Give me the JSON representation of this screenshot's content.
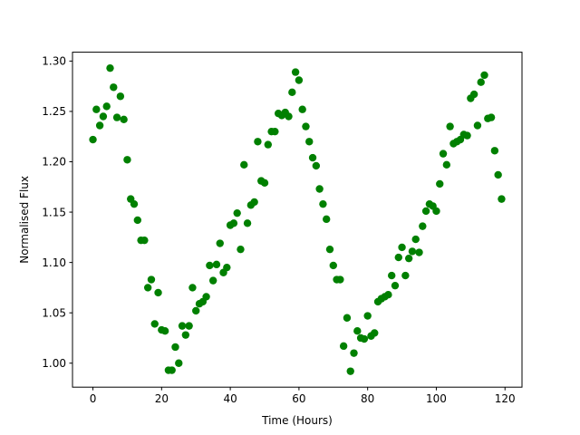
{
  "chart_data": {
    "type": "scatter",
    "title": "",
    "xlabel": "Time (Hours)",
    "ylabel": "Normalised Flux",
    "xlim": [
      -5.95,
      124.95
    ],
    "ylim": [
      0.9762,
      1.3088
    ],
    "xticks": [
      0,
      20,
      40,
      60,
      80,
      100,
      120
    ],
    "xtick_labels": [
      "0",
      "20",
      "40",
      "60",
      "80",
      "100",
      "120"
    ],
    "yticks": [
      1.0,
      1.05,
      1.1,
      1.15,
      1.2,
      1.25,
      1.3
    ],
    "ytick_labels": [
      "1.00",
      "1.05",
      "1.10",
      "1.15",
      "1.20",
      "1.25",
      "1.30"
    ],
    "grid": false,
    "marker_color": "#008000",
    "series": [
      {
        "name": "",
        "points": [
          [
            0,
            1.222
          ],
          [
            1,
            1.252
          ],
          [
            2,
            1.236
          ],
          [
            3,
            1.245
          ],
          [
            4,
            1.255
          ],
          [
            5,
            1.293
          ],
          [
            6,
            1.274
          ],
          [
            7,
            1.244
          ],
          [
            8,
            1.265
          ],
          [
            9,
            1.242
          ],
          [
            10,
            1.202
          ],
          [
            11,
            1.163
          ],
          [
            12,
            1.158
          ],
          [
            13,
            1.142
          ],
          [
            14,
            1.122
          ],
          [
            15,
            1.122
          ],
          [
            16,
            1.075
          ],
          [
            17,
            1.083
          ],
          [
            18,
            1.039
          ],
          [
            19,
            1.07
          ],
          [
            20,
            1.033
          ],
          [
            21,
            1.032
          ],
          [
            22,
            0.993
          ],
          [
            23,
            0.993
          ],
          [
            24,
            1.016
          ],
          [
            25,
            1.0
          ],
          [
            26,
            1.037
          ],
          [
            27,
            1.028
          ],
          [
            28,
            1.037
          ],
          [
            29,
            1.075
          ],
          [
            30,
            1.052
          ],
          [
            31,
            1.059
          ],
          [
            32,
            1.061
          ],
          [
            33,
            1.066
          ],
          [
            34,
            1.097
          ],
          [
            35,
            1.082
          ],
          [
            36,
            1.098
          ],
          [
            37,
            1.119
          ],
          [
            38,
            1.09
          ],
          [
            39,
            1.095
          ],
          [
            40,
            1.137
          ],
          [
            41,
            1.139
          ],
          [
            42,
            1.149
          ],
          [
            43,
            1.113
          ],
          [
            44,
            1.197
          ],
          [
            45,
            1.139
          ],
          [
            46,
            1.157
          ],
          [
            47,
            1.16
          ],
          [
            48,
            1.22
          ],
          [
            49,
            1.181
          ],
          [
            50,
            1.179
          ],
          [
            51,
            1.217
          ],
          [
            52,
            1.23
          ],
          [
            53,
            1.23
          ],
          [
            54,
            1.248
          ],
          [
            55,
            1.246
          ],
          [
            56,
            1.249
          ],
          [
            57,
            1.245
          ],
          [
            58,
            1.269
          ],
          [
            59,
            1.289
          ],
          [
            60,
            1.281
          ],
          [
            61,
            1.252
          ],
          [
            62,
            1.235
          ],
          [
            63,
            1.22
          ],
          [
            64,
            1.204
          ],
          [
            65,
            1.196
          ],
          [
            66,
            1.173
          ],
          [
            67,
            1.158
          ],
          [
            68,
            1.143
          ],
          [
            69,
            1.113
          ],
          [
            70,
            1.097
          ],
          [
            71,
            1.083
          ],
          [
            72,
            1.083
          ],
          [
            73,
            1.017
          ],
          [
            74,
            1.045
          ],
          [
            75,
            0.992
          ],
          [
            76,
            1.01
          ],
          [
            77,
            1.032
          ],
          [
            78,
            1.025
          ],
          [
            79,
            1.024
          ],
          [
            80,
            1.047
          ],
          [
            81,
            1.027
          ],
          [
            82,
            1.03
          ],
          [
            83,
            1.061
          ],
          [
            84,
            1.064
          ],
          [
            85,
            1.066
          ],
          [
            86,
            1.068
          ],
          [
            87,
            1.087
          ],
          [
            88,
            1.077
          ],
          [
            89,
            1.105
          ],
          [
            90,
            1.115
          ],
          [
            91,
            1.087
          ],
          [
            92,
            1.104
          ],
          [
            93,
            1.111
          ],
          [
            94,
            1.123
          ],
          [
            95,
            1.11
          ],
          [
            96,
            1.136
          ],
          [
            97,
            1.151
          ],
          [
            98,
            1.158
          ],
          [
            99,
            1.156
          ],
          [
            100,
            1.151
          ],
          [
            101,
            1.178
          ],
          [
            102,
            1.208
          ],
          [
            103,
            1.197
          ],
          [
            104,
            1.235
          ],
          [
            105,
            1.218
          ],
          [
            106,
            1.22
          ],
          [
            107,
            1.222
          ],
          [
            108,
            1.227
          ],
          [
            109,
            1.226
          ],
          [
            110,
            1.263
          ],
          [
            111,
            1.267
          ],
          [
            112,
            1.236
          ],
          [
            113,
            1.279
          ],
          [
            114,
            1.286
          ],
          [
            115,
            1.243
          ],
          [
            116,
            1.244
          ],
          [
            117,
            1.211
          ],
          [
            118,
            1.187
          ],
          [
            119,
            1.163
          ]
        ]
      }
    ]
  }
}
